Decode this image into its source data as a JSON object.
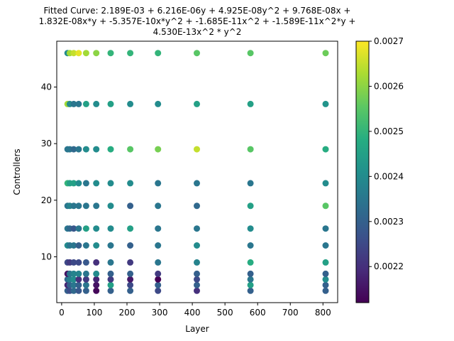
{
  "chart_data": {
    "type": "scatter",
    "title_lines": [
      "Fitted Curve: 2.189E-03 + 6.216E-06y + 4.925E-08y^2 + 9.768E-08x +",
      "1.832E-08x*y + -5.357E-10x*y^2 + -1.685E-11x^2 + -1.589E-11x^2*y +",
      "4.530E-13x^2 * y^2"
    ],
    "xlabel": "Layer",
    "ylabel": "Controllers",
    "xlim": [
      -15,
      845
    ],
    "ylim": [
      1.9,
      48.1
    ],
    "xticks": [
      0,
      100,
      200,
      300,
      400,
      500,
      600,
      700,
      800
    ],
    "yticks": [
      10,
      20,
      30,
      40
    ],
    "grid": false,
    "colorbar": {
      "colormap": "viridis",
      "range": [
        0.00212,
        0.0027
      ],
      "ticks": [
        0.0022,
        0.0023,
        0.0024,
        0.0025,
        0.0026,
        0.0027
      ],
      "tick_labels": [
        "0.0022",
        "0.0023",
        "0.0024",
        "0.0025",
        "0.0026",
        "0.0027"
      ]
    },
    "x_levels": [
      18,
      25,
      37,
      52,
      75,
      106,
      150,
      210,
      295,
      414,
      578,
      808
    ],
    "y_levels": [
      4,
      5,
      6,
      7,
      9,
      12,
      15,
      19,
      23,
      29,
      37,
      46
    ],
    "points_note": "",
    "value_grid": [
      [
        0.0023,
        0.00226,
        0.00232,
        0.00228,
        0.0023,
        0.00213,
        0.0023,
        0.0023,
        0.00225,
        0.0022,
        0.0023,
        0.0023
      ],
      [
        0.00218,
        0.0023,
        0.00235,
        0.0023,
        0.00235,
        0.00215,
        0.00245,
        0.00225,
        0.0023,
        0.0023,
        0.00245,
        0.0023
      ],
      [
        0.00232,
        0.00237,
        0.0024,
        0.0022,
        0.00222,
        0.00218,
        0.00222,
        0.00216,
        0.00212,
        0.00225,
        0.00235,
        0.0024
      ],
      [
        0.00215,
        0.00235,
        0.00238,
        0.00238,
        0.00235,
        0.0024,
        0.0023,
        0.0023,
        0.00222,
        0.0023,
        0.0023,
        0.0023
      ],
      [
        0.00225,
        0.00222,
        0.00225,
        0.00225,
        0.00228,
        0.0022,
        0.00235,
        0.00222,
        0.00235,
        0.00238,
        0.00248,
        0.00245
      ],
      [
        0.0024,
        0.00235,
        0.00235,
        0.0023,
        0.00235,
        0.0024,
        0.00235,
        0.0023,
        0.00235,
        0.0024,
        0.00235,
        0.00235
      ],
      [
        0.00235,
        0.00232,
        0.00228,
        0.00235,
        0.00245,
        0.0024,
        0.0024,
        0.00245,
        0.00235,
        0.00235,
        0.0024,
        0.00235
      ],
      [
        0.00235,
        0.00238,
        0.00235,
        0.00235,
        0.00235,
        0.00235,
        0.0024,
        0.0023,
        0.00235,
        0.00232,
        0.00245,
        0.00255
      ],
      [
        0.0025,
        0.00245,
        0.00245,
        0.0024,
        0.00235,
        0.0024,
        0.0024,
        0.0024,
        0.00235,
        0.00235,
        0.00235,
        0.0024
      ],
      [
        0.00235,
        0.00235,
        0.00232,
        0.00235,
        0.0024,
        0.0024,
        0.00248,
        0.00255,
        0.00258,
        0.00265,
        0.00255,
        0.00248
      ],
      [
        0.00262,
        0.0024,
        0.00235,
        0.00235,
        0.00245,
        0.0024,
        0.00245,
        0.0024,
        0.0024,
        0.00245,
        0.00245,
        0.00242
      ],
      [
        0.0024,
        0.00262,
        0.00265,
        0.00268,
        0.00262,
        0.0026,
        0.0025,
        0.0025,
        0.0025,
        0.00255,
        0.00255,
        0.00257
      ]
    ]
  }
}
